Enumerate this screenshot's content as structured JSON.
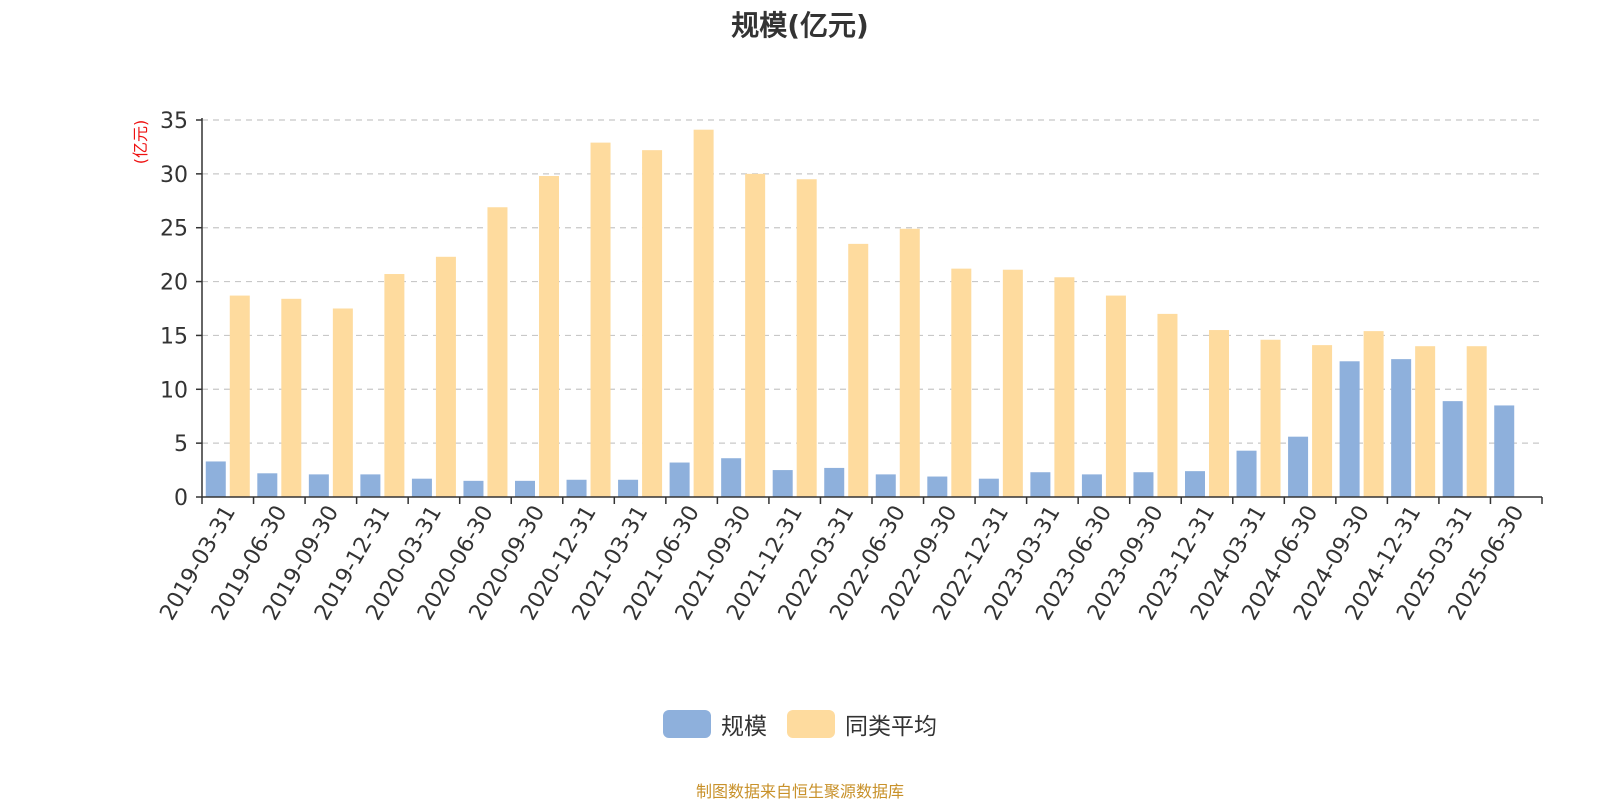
{
  "chart_data": {
    "type": "bar",
    "title": "规模(亿元)",
    "ylabel": "(亿元)",
    "ylim": [
      0,
      35
    ],
    "yticks": [
      0,
      5,
      10,
      15,
      20,
      25,
      30,
      35
    ],
    "grid": true,
    "legend_position": "bottom",
    "categories": [
      "2019-03-31",
      "2019-06-30",
      "2019-09-30",
      "2019-12-31",
      "2020-03-31",
      "2020-06-30",
      "2020-09-30",
      "2020-12-31",
      "2021-03-31",
      "2021-06-30",
      "2021-09-30",
      "2021-12-31",
      "2022-03-31",
      "2022-06-30",
      "2022-09-30",
      "2022-12-31",
      "2023-03-31",
      "2023-06-30",
      "2023-09-30",
      "2023-12-31",
      "2024-03-31",
      "2024-06-30",
      "2024-09-30",
      "2024-12-31",
      "2025-03-31",
      "2025-06-30"
    ],
    "series": [
      {
        "name": "规模",
        "color": "#8eb0dc",
        "values": [
          3.3,
          2.2,
          2.1,
          2.1,
          1.7,
          1.5,
          1.5,
          1.6,
          1.6,
          3.2,
          3.6,
          2.5,
          2.7,
          2.1,
          1.9,
          1.7,
          2.3,
          2.1,
          2.3,
          2.4,
          4.3,
          5.6,
          12.6,
          12.8,
          8.9,
          8.5
        ]
      },
      {
        "name": "同类平均",
        "color": "#fedb9e",
        "values": [
          18.7,
          18.4,
          17.5,
          20.7,
          22.3,
          26.9,
          29.8,
          32.9,
          32.2,
          34.1,
          30.0,
          29.5,
          23.5,
          24.9,
          21.2,
          21.1,
          20.4,
          18.7,
          17.0,
          15.5,
          14.6,
          14.1,
          15.4,
          14.0,
          14.0,
          null
        ]
      }
    ],
    "source_note": "制图数据来自恒生聚源数据库",
    "source_note_color": "#c8912a",
    "ylabel_color": "#ee1111"
  }
}
